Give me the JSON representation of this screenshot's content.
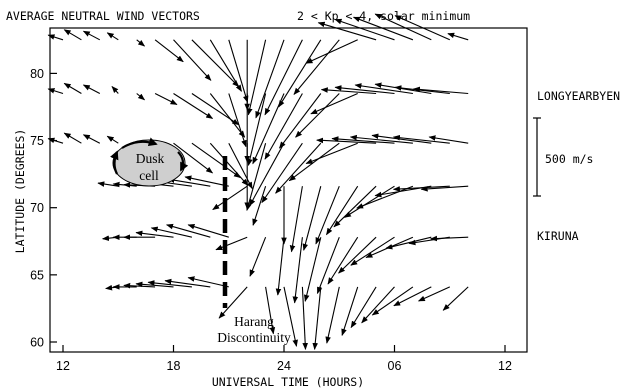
{
  "chart_data": {
    "type": "vector-field",
    "title": "AVERAGE NEUTRAL WIND VECTORS",
    "subtitle": "2 < Kp < 4, solar minimum",
    "xlabel": "UNIVERSAL TIME (HOURS)",
    "ylabel": "LATITUDE (DEGREES)",
    "x_ticks": [
      "12",
      "18",
      "24",
      "06",
      "12"
    ],
    "y_ticks": [
      "60",
      "65",
      "70",
      "75",
      "80"
    ],
    "xlim_hours_ut": [
      12,
      36
    ],
    "ylim_deg": [
      60,
      83
    ],
    "grid": false,
    "scale_speed_ms": 500,
    "scale_label": "500 m/s",
    "station_labels": [
      {
        "name": "LONGYEARBYEN",
        "lat": 78
      },
      {
        "name": "KIRUNA",
        "lat": 67.8
      }
    ],
    "annotations": [
      {
        "text_lines": [
          "Dusk",
          "cell"
        ],
        "ut": 17,
        "lat": 73.2
      },
      {
        "text_lines": [
          "Harang",
          "Discontinuity"
        ],
        "ut": 21.2,
        "lat": 61.5
      }
    ],
    "discontinuity_ut": 20.75,
    "rows": [
      {
        "lat": 82.5,
        "u_ms": [
          -95,
          -110,
          -105,
          -70,
          50,
          180,
          240,
          300,
          200,
          120,
          0,
          -110,
          -180,
          -240,
          -270,
          -290,
          -330,
          -370,
          -380,
          -380,
          -360,
          -350,
          -130
        ],
        "v_ms": [
          30,
          65,
          55,
          45,
          -40,
          -140,
          -260,
          -300,
          -330,
          -400,
          -450,
          -480,
          -500,
          -480,
          -430,
          -350,
          -150,
          110,
          130,
          145,
          165,
          155,
          40
        ]
      },
      {
        "lat": 78.5,
        "u_ms": [
          -95,
          -110,
          -105,
          -40,
          50,
          140,
          250,
          300,
          220,
          110,
          0,
          -110,
          -200,
          -240,
          -265,
          -280,
          -300,
          -350,
          -380,
          -370,
          -360,
          -350,
          -350
        ],
        "v_ms": [
          30,
          65,
          55,
          45,
          -40,
          -70,
          -160,
          -200,
          -280,
          -340,
          -440,
          -460,
          -450,
          -420,
          -350,
          -280,
          -130,
          25,
          40,
          55,
          60,
          40,
          30
        ]
      },
      {
        "lat": 74.8,
        "u_ms": [
          -95,
          -110,
          -105,
          -70,
          50,
          180,
          250,
          310,
          240,
          150,
          0,
          -120,
          -220,
          -260,
          -290,
          -320,
          -330,
          -380,
          -400,
          -400,
          -380,
          -360,
          -250
        ],
        "v_ms": [
          30,
          65,
          55,
          45,
          -50,
          -100,
          -190,
          -220,
          -270,
          -290,
          -420,
          -430,
          -400,
          -380,
          -320,
          -240,
          -130,
          20,
          30,
          40,
          50,
          40,
          40
        ]
      },
      {
        "lat": 71.6,
        "u_ms": [
          -130,
          -150,
          -200,
          -220,
          -220,
          -270,
          -280,
          -220,
          -80,
          0,
          -70,
          -110,
          -150,
          -200,
          -270,
          -320,
          -360,
          -360,
          -360,
          -300
        ],
        "v_ms": [
          20,
          15,
          10,
          25,
          30,
          45,
          60,
          -150,
          -250,
          -370,
          -420,
          -410,
          -370,
          -310,
          -260,
          -200,
          -140,
          -60,
          -20,
          -20
        ]
      },
      {
        "lat": 67.8,
        "u_ms": [
          -100,
          -150,
          -200,
          -240,
          -260,
          -280,
          -260,
          -200,
          -100,
          -40,
          -50,
          -100,
          -140,
          -190,
          -240,
          -280,
          -300,
          -290,
          -260,
          -240
        ],
        "v_ms": [
          -10,
          0,
          0,
          30,
          60,
          80,
          80,
          -80,
          -250,
          -370,
          -420,
          -410,
          -360,
          -300,
          -230,
          -180,
          -130,
          -70,
          -40,
          -10
        ]
      },
      {
        "lat": 64.1,
        "u_ms": [
          -80,
          -150,
          -200,
          -240,
          -280,
          -290,
          -260,
          -180,
          50,
          80,
          20,
          -40,
          -80,
          -100,
          -160,
          -210,
          -260,
          -240,
          -200,
          -160
        ],
        "v_ms": [
          -10,
          0,
          10,
          20,
          30,
          40,
          60,
          -200,
          -300,
          -380,
          -400,
          -400,
          -360,
          -310,
          -260,
          -230,
          -180,
          -120,
          -90,
          -150
        ]
      }
    ]
  }
}
